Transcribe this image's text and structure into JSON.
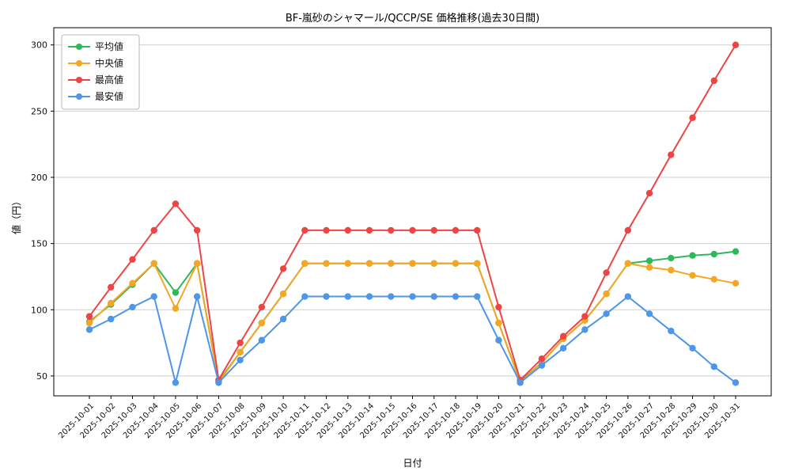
{
  "chart_data": {
    "type": "line",
    "title": "BF-嵐砂のシャマール/QCCP/SE 価格推移(過去30日間)",
    "xlabel": "日付",
    "ylabel": "値（円）",
    "legend_position": "upper-left",
    "grid": "horizontal",
    "y_ticks": [
      50,
      100,
      150,
      200,
      250,
      300
    ],
    "ylim": [
      35,
      313
    ],
    "x": [
      "2025-10-01",
      "2025-10-02",
      "2025-10-03",
      "2025-10-04",
      "2025-10-05",
      "2025-10-06",
      "2025-10-07",
      "2025-10-08",
      "2025-10-09",
      "2025-10-10",
      "2025-10-11",
      "2025-10-12",
      "2025-10-13",
      "2025-10-14",
      "2025-10-15",
      "2025-10-16",
      "2025-10-17",
      "2025-10-18",
      "2025-10-19",
      "2025-10-20",
      "2025-10-21",
      "2025-10-22",
      "2025-10-23",
      "2025-10-24",
      "2025-10-25",
      "2025-10-26",
      "2025-10-27",
      "2025-10-28",
      "2025-10-29",
      "2025-10-30",
      "2025-10-31"
    ],
    "series": [
      {
        "name": "平均値",
        "color": "#2eb85c",
        "values": [
          91,
          104,
          119,
          135,
          113,
          135,
          46,
          68,
          90,
          112,
          135,
          135,
          135,
          135,
          135,
          135,
          135,
          135,
          135,
          90,
          46,
          60,
          78,
          92,
          112,
          135,
          137,
          139,
          141,
          142,
          144
        ]
      },
      {
        "name": "中央値",
        "color": "#f5a623",
        "values": [
          90,
          105,
          120,
          135,
          101,
          135,
          45,
          68,
          90,
          112,
          135,
          135,
          135,
          135,
          135,
          135,
          135,
          135,
          135,
          90,
          45,
          60,
          78,
          92,
          112,
          135,
          132,
          130,
          126,
          123,
          120
        ]
      },
      {
        "name": "最高値",
        "color": "#ef4444",
        "values": [
          95,
          117,
          138,
          160,
          180,
          160,
          47,
          75,
          102,
          131,
          160,
          160,
          160,
          160,
          160,
          160,
          160,
          160,
          160,
          102,
          47,
          63,
          80,
          95,
          128,
          160,
          188,
          217,
          245,
          273,
          300
        ]
      },
      {
        "name": "最安値",
        "color": "#4d96e8",
        "values": [
          85,
          93,
          102,
          110,
          45,
          110,
          45,
          62,
          77,
          93,
          110,
          110,
          110,
          110,
          110,
          110,
          110,
          110,
          110,
          77,
          45,
          58,
          71,
          85,
          97,
          110,
          97,
          84,
          71,
          57,
          45
        ]
      }
    ],
    "style": {
      "grid_color": "#cfcfcf",
      "spine_color": "#000000",
      "background": "#ffffff"
    }
  }
}
